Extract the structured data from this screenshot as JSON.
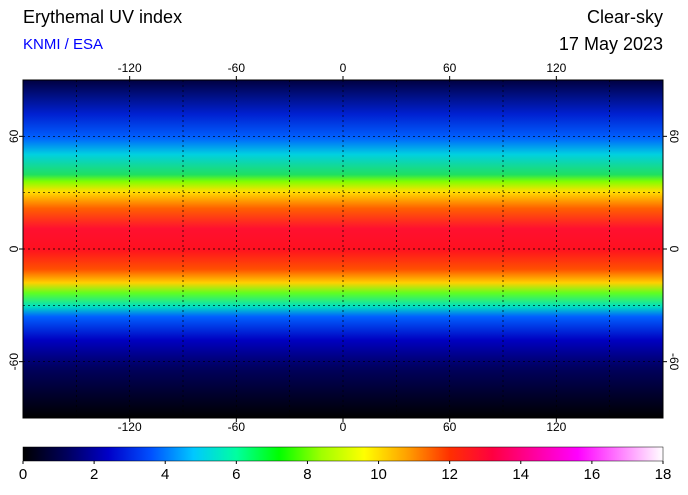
{
  "chart_data": {
    "type": "map",
    "title": "Erythemal UV index",
    "subtitle": "KNMI / ESA",
    "condition": "Clear-sky",
    "date": "17 May 2023",
    "xlim": [
      -180,
      180
    ],
    "xticks": [
      -120,
      -60,
      0,
      60,
      120
    ],
    "ylim": [
      -90,
      90
    ],
    "yticks": [
      60,
      0,
      -60
    ],
    "grid_step": 30,
    "colorbar": {
      "lim": [
        0,
        18
      ],
      "ticks": [
        0,
        2,
        4,
        6,
        8,
        10,
        12,
        14,
        16,
        18
      ],
      "colors": [
        "#000000",
        "#00005a",
        "#0000c8",
        "#0050ff",
        "#00c8ff",
        "#00ffa0",
        "#00ff00",
        "#a0ff00",
        "#ffff00",
        "#ffa000",
        "#ff3000",
        "#ff0040",
        "#ff00a0",
        "#ff00ff",
        "#ff80ff",
        "#ffffff"
      ]
    }
  }
}
